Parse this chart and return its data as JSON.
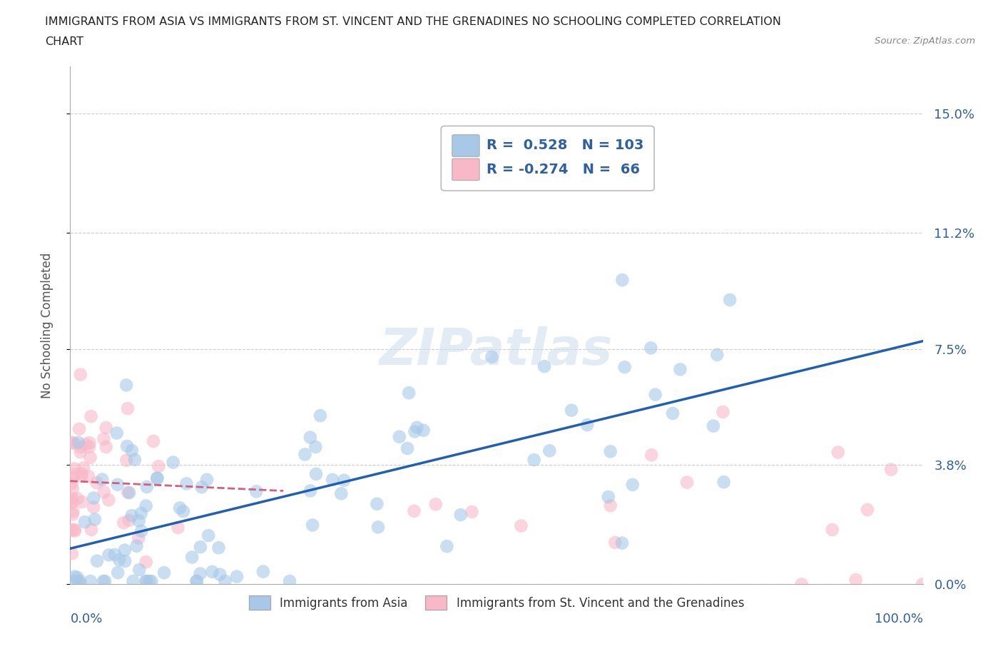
{
  "title_line1": "IMMIGRANTS FROM ASIA VS IMMIGRANTS FROM ST. VINCENT AND THE GRENADINES NO SCHOOLING COMPLETED CORRELATION",
  "title_line2": "CHART",
  "source": "Source: ZipAtlas.com",
  "ylabel": "No Schooling Completed",
  "xlim": [
    0,
    100
  ],
  "ylim": [
    0,
    16.5
  ],
  "ytick_vals": [
    0,
    3.8,
    7.5,
    11.2,
    15.0
  ],
  "ytick_labels": [
    "0.0%",
    "3.8%",
    "7.5%",
    "11.2%",
    "15.0%"
  ],
  "xtick_labels": [
    "0.0%",
    "100.0%"
  ],
  "grid_color": "#cccccc",
  "background_color": "#ffffff",
  "blue_color": "#a8c8e8",
  "pink_color": "#f8b8c8",
  "blue_line_color": "#2060b0",
  "pink_line_color": "#d06080",
  "text_color": "#3060a0",
  "legend_R_blue": "0.528",
  "legend_N_blue": "103",
  "legend_R_pink": "-0.274",
  "legend_N_pink": "66",
  "watermark": "ZIPatlas",
  "legend_label_blue": "Immigrants from Asia",
  "legend_label_pink": "Immigrants from St. Vincent and the Grenadines"
}
